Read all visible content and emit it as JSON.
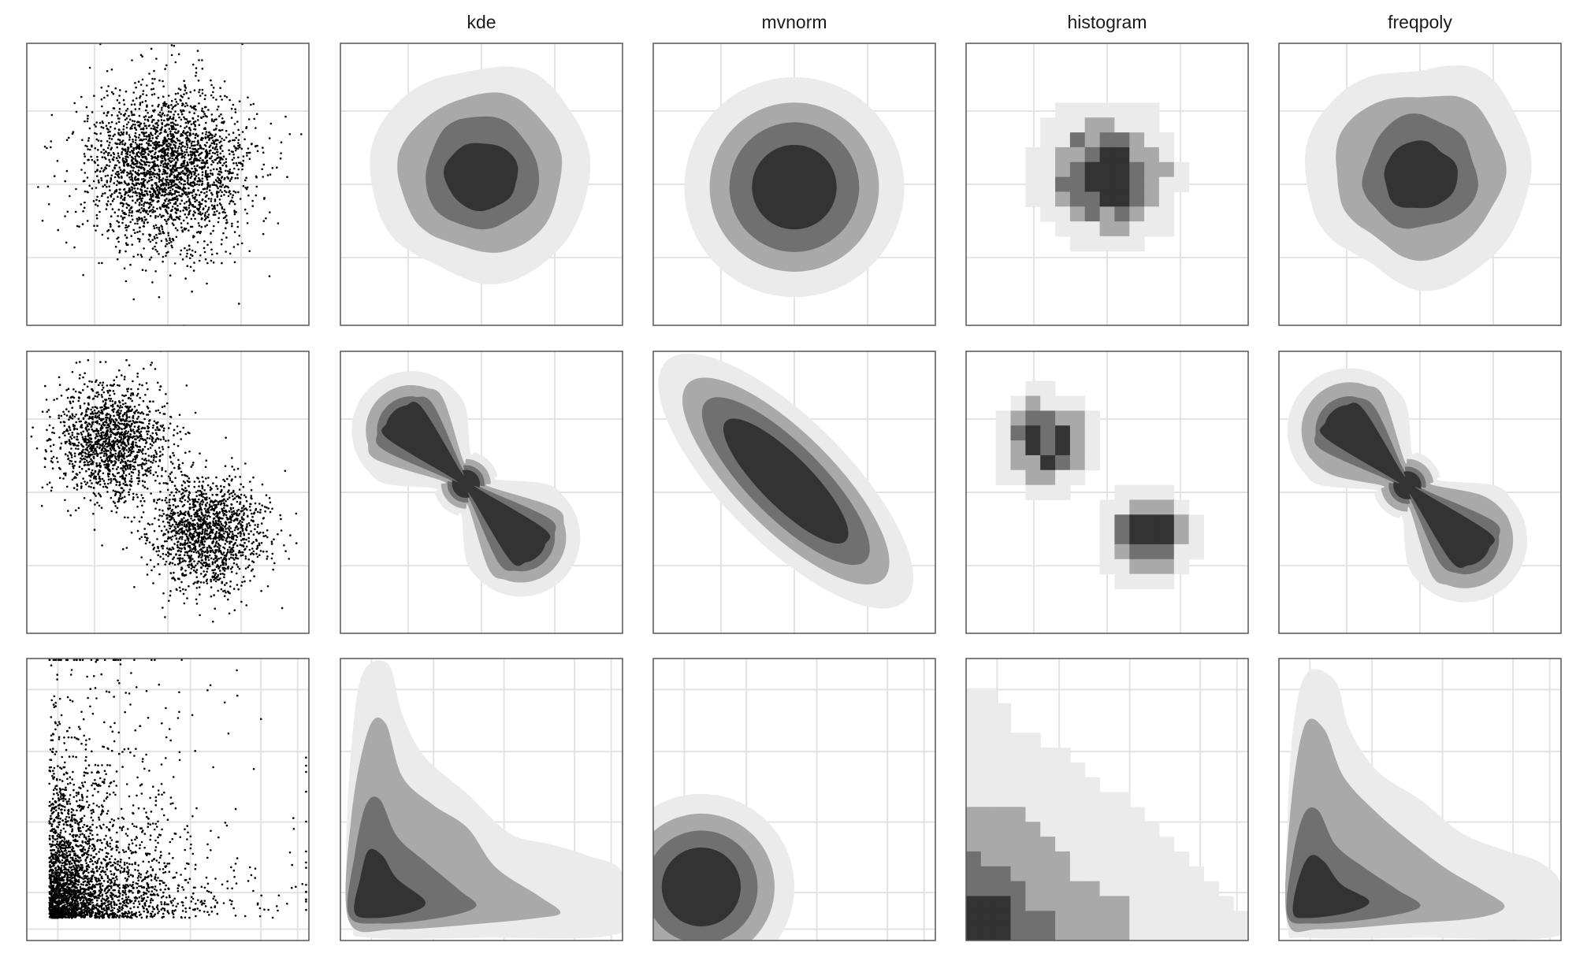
{
  "chart_data": {
    "type": "scatter",
    "columns": [
      "",
      "kde",
      "mvnorm",
      "histogram",
      "freqpoly"
    ],
    "rows": [
      {
        "shape": "single-blob",
        "scatter": {
          "clusters": [
            {
              "center": [
                0.5,
                0.45
              ],
              "sd": [
                0.14,
                0.14
              ],
              "n": 2600
            }
          ]
        },
        "kde": {
          "levels": [
            {
              "center": [
                0.5,
                0.46
              ],
              "radius": [
                0.39,
                0.38
              ]
            },
            {
              "center": [
                0.5,
                0.46
              ],
              "radius": [
                0.29,
                0.28
              ]
            },
            {
              "center": [
                0.5,
                0.46
              ],
              "radius": [
                0.2,
                0.2
              ]
            },
            {
              "center": [
                0.5,
                0.47
              ],
              "radius": [
                0.13,
                0.12
              ]
            }
          ]
        },
        "mvnorm": {
          "levels": [
            {
              "center": [
                0.5,
                0.51
              ],
              "rx": 0.39,
              "ry": 0.39,
              "angle": 0
            },
            {
              "center": [
                0.5,
                0.51
              ],
              "rx": 0.3,
              "ry": 0.3,
              "angle": 0
            },
            {
              "center": [
                0.5,
                0.51
              ],
              "rx": 0.23,
              "ry": 0.23,
              "angle": 0
            },
            {
              "center": [
                0.5,
                0.51
              ],
              "rx": 0.15,
              "ry": 0.15,
              "angle": 0
            }
          ]
        },
        "histogram": {
          "grid": [
            19,
            19
          ],
          "clusters": [
            {
              "center": [
                0.5,
                0.47
              ],
              "sd": [
                0.14,
                0.14
              ]
            }
          ],
          "thresholds": [
            0.14,
            0.36,
            0.58,
            0.8
          ]
        },
        "freqpoly": {
          "levels": [
            {
              "center": [
                0.5,
                0.46
              ],
              "radius": [
                0.4,
                0.39
              ]
            },
            {
              "center": [
                0.5,
                0.46
              ],
              "radius": [
                0.3,
                0.29
              ]
            },
            {
              "center": [
                0.5,
                0.46
              ],
              "radius": [
                0.2,
                0.2
              ]
            },
            {
              "center": [
                0.5,
                0.47
              ],
              "radius": [
                0.13,
                0.12
              ]
            }
          ]
        }
      },
      {
        "shape": "two-blobs",
        "scatter": {
          "clusters": [
            {
              "center": [
                0.3,
                0.32
              ],
              "sd": [
                0.1,
                0.1
              ],
              "n": 1500
            },
            {
              "center": [
                0.64,
                0.64
              ],
              "sd": [
                0.1,
                0.1
              ],
              "n": 1500
            }
          ]
        },
        "kde": {
          "levels": [
            {
              "a": [
                0.25,
                0.28
              ],
              "b": [
                0.64,
                0.66
              ],
              "radius": 0.21
            },
            {
              "a": [
                0.25,
                0.28
              ],
              "b": [
                0.64,
                0.66
              ],
              "radius": 0.16
            },
            {
              "a": [
                0.25,
                0.28
              ],
              "b": [
                0.64,
                0.66
              ],
              "radius": 0.12
            },
            {
              "a": [
                0.25,
                0.28
              ],
              "b": [
                0.64,
                0.66
              ],
              "radius": 0.09
            }
          ]
        },
        "mvnorm": {
          "levels": [
            {
              "center": [
                0.47,
                0.46
              ],
              "rx": 0.6,
              "ry": 0.22,
              "angle": 45
            },
            {
              "center": [
                0.47,
                0.46
              ],
              "rx": 0.49,
              "ry": 0.17,
              "angle": 45
            },
            {
              "center": [
                0.47,
                0.46
              ],
              "rx": 0.4,
              "ry": 0.13,
              "angle": 45
            },
            {
              "center": [
                0.47,
                0.46
              ],
              "rx": 0.3,
              "ry": 0.09,
              "angle": 45
            }
          ]
        },
        "histogram": {
          "grid": [
            19,
            19
          ],
          "clusters": [
            {
              "center": [
                0.28,
                0.32
              ],
              "sd": [
                0.1,
                0.1
              ]
            },
            {
              "center": [
                0.64,
                0.65
              ],
              "sd": [
                0.1,
                0.1
              ]
            }
          ],
          "thresholds": [
            0.16,
            0.4,
            0.62,
            0.82
          ]
        },
        "freqpoly": {
          "levels": [
            {
              "a": [
                0.25,
                0.28
              ],
              "b": [
                0.66,
                0.67
              ],
              "radius": 0.22
            },
            {
              "a": [
                0.25,
                0.28
              ],
              "b": [
                0.66,
                0.67
              ],
              "radius": 0.17
            },
            {
              "a": [
                0.25,
                0.28
              ],
              "b": [
                0.66,
                0.67
              ],
              "radius": 0.12
            },
            {
              "a": [
                0.25,
                0.28
              ],
              "b": [
                0.66,
                0.67
              ],
              "radius": 0.09
            }
          ]
        }
      },
      {
        "shape": "skewed-corner",
        "scatter": {
          "origin": [
            0.08,
            0.92
          ],
          "scale": [
            0.16,
            0.13
          ],
          "n": 3000
        },
        "kde": {
          "levels": [
            {
              "points": [
                [
                  0.04,
                  0.94
                ],
                [
                  0.02,
                  0.7
                ],
                [
                  0.04,
                  0.3
                ],
                [
                  0.08,
                  0.05
                ],
                [
                  0.17,
                  0.02
                ],
                [
                  0.22,
                  0.2
                ],
                [
                  0.3,
                  0.35
                ],
                [
                  0.45,
                  0.48
                ],
                [
                  0.6,
                  0.62
                ],
                [
                  0.75,
                  0.66
                ],
                [
                  0.88,
                  0.7
                ],
                [
                  1,
                  0.76
                ],
                [
                  1,
                  0.97
                ],
                [
                  0.5,
                  0.99
                ],
                [
                  0.1,
                  0.99
                ]
              ]
            },
            {
              "points": [
                [
                  0.03,
                  0.93
                ],
                [
                  0.04,
                  0.55
                ],
                [
                  0.1,
                  0.25
                ],
                [
                  0.16,
                  0.23
                ],
                [
                  0.22,
                  0.42
                ],
                [
                  0.33,
                  0.52
                ],
                [
                  0.45,
                  0.6
                ],
                [
                  0.55,
                  0.74
                ],
                [
                  0.7,
                  0.84
                ],
                [
                  0.78,
                  0.9
                ],
                [
                  0.7,
                  0.92
                ],
                [
                  0.5,
                  0.94
                ],
                [
                  0.2,
                  0.96
                ]
              ]
            },
            {
              "points": [
                [
                  0.03,
                  0.91
                ],
                [
                  0.05,
                  0.7
                ],
                [
                  0.09,
                  0.52
                ],
                [
                  0.14,
                  0.5
                ],
                [
                  0.2,
                  0.63
                ],
                [
                  0.3,
                  0.72
                ],
                [
                  0.42,
                  0.82
                ],
                [
                  0.48,
                  0.88
                ],
                [
                  0.35,
                  0.92
                ],
                [
                  0.15,
                  0.94
                ]
              ]
            },
            {
              "points": [
                [
                  0.05,
                  0.9
                ],
                [
                  0.07,
                  0.78
                ],
                [
                  0.1,
                  0.68
                ],
                [
                  0.15,
                  0.7
                ],
                [
                  0.2,
                  0.78
                ],
                [
                  0.3,
                  0.86
                ],
                [
                  0.25,
                  0.9
                ],
                [
                  0.12,
                  0.92
                ]
              ]
            }
          ]
        },
        "mvnorm": {
          "levels": [
            {
              "center": [
                0.17,
                0.81
              ],
              "rx": 0.33,
              "ry": 0.33,
              "angle": 0
            },
            {
              "center": [
                0.17,
                0.81
              ],
              "rx": 0.26,
              "ry": 0.26,
              "angle": 0
            },
            {
              "center": [
                0.17,
                0.81
              ],
              "rx": 0.2,
              "ry": 0.2,
              "angle": 0
            },
            {
              "center": [
                0.17,
                0.81
              ],
              "rx": 0.14,
              "ry": 0.14,
              "angle": 0
            }
          ]
        },
        "histogram": {
          "grid": [
            19,
            19
          ],
          "origin": [
            0.08,
            0.92
          ],
          "scale": [
            0.16,
            0.13
          ],
          "thresholds": [
            0.035,
            0.16,
            0.4,
            0.7
          ]
        },
        "freqpoly": {
          "levels": [
            {
              "points": [
                [
                  0.03,
                  0.95
                ],
                [
                  0.03,
                  0.6
                ],
                [
                  0.05,
                  0.25
                ],
                [
                  0.1,
                  0.05
                ],
                [
                  0.2,
                  0.08
                ],
                [
                  0.25,
                  0.25
                ],
                [
                  0.35,
                  0.4
                ],
                [
                  0.5,
                  0.5
                ],
                [
                  0.65,
                  0.62
                ],
                [
                  0.8,
                  0.68
                ],
                [
                  0.92,
                  0.72
                ],
                [
                  1,
                  0.8
                ],
                [
                  1,
                  0.98
                ],
                [
                  0.5,
                  0.99
                ],
                [
                  0.1,
                  0.99
                ]
              ]
            },
            {
              "points": [
                [
                  0.03,
                  0.93
                ],
                [
                  0.04,
                  0.55
                ],
                [
                  0.09,
                  0.24
                ],
                [
                  0.16,
                  0.25
                ],
                [
                  0.23,
                  0.42
                ],
                [
                  0.35,
                  0.55
                ],
                [
                  0.48,
                  0.66
                ],
                [
                  0.6,
                  0.75
                ],
                [
                  0.72,
                  0.82
                ],
                [
                  0.8,
                  0.88
                ],
                [
                  0.7,
                  0.92
                ],
                [
                  0.45,
                  0.94
                ],
                [
                  0.15,
                  0.96
                ]
              ]
            },
            {
              "points": [
                [
                  0.03,
                  0.91
                ],
                [
                  0.05,
                  0.7
                ],
                [
                  0.09,
                  0.55
                ],
                [
                  0.14,
                  0.54
                ],
                [
                  0.2,
                  0.66
                ],
                [
                  0.3,
                  0.74
                ],
                [
                  0.42,
                  0.82
                ],
                [
                  0.5,
                  0.88
                ],
                [
                  0.35,
                  0.92
                ],
                [
                  0.12,
                  0.94
                ]
              ]
            },
            {
              "points": [
                [
                  0.05,
                  0.9
                ],
                [
                  0.07,
                  0.78
                ],
                [
                  0.11,
                  0.7
                ],
                [
                  0.16,
                  0.72
                ],
                [
                  0.22,
                  0.8
                ],
                [
                  0.32,
                  0.86
                ],
                [
                  0.25,
                  0.9
                ],
                [
                  0.1,
                  0.92
                ]
              ]
            }
          ]
        }
      }
    ],
    "fill_levels": [
      "#ebebeb",
      "#a9a9a9",
      "#707070",
      "#333333"
    ],
    "point_color": "#000000",
    "grid_color": "#e3e3e3",
    "border_color": "#555555",
    "grid": true,
    "legend": "none"
  }
}
